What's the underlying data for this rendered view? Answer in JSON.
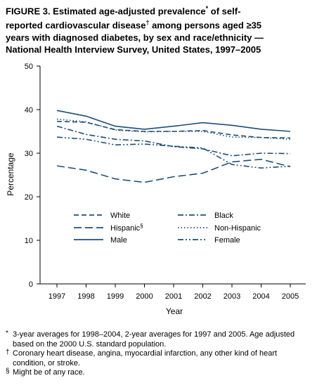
{
  "figure": {
    "title_lines": [
      "FIGURE 3. Estimated age-adjusted prevalence",
      " of self-",
      "reported cardiovascular disease",
      " among persons aged ",
      "≥35",
      "years with diagnosed diabetes, by sex and race/ethnicity —",
      "National Health Interview Survey, United States, 1997–2005"
    ],
    "title_marks": {
      "star": "*",
      "dagger": "†"
    }
  },
  "chart_data": {
    "type": "line",
    "title": "",
    "xlabel": "Year",
    "ylabel": "Percentage",
    "x": [
      "1997",
      "1998",
      "1999",
      "2000",
      "2001",
      "2002",
      "2003",
      "2004",
      "2005"
    ],
    "ylim": [
      0,
      50
    ],
    "yticks": [
      "0",
      "10",
      "20",
      "30",
      "40",
      "50"
    ],
    "grid": false,
    "legend_position": "lower-center",
    "series": [
      {
        "name": "White",
        "style": "dashed",
        "values": [
          37.3,
          37.1,
          35.4,
          35.0,
          35.0,
          35.2,
          34.2,
          33.6,
          33.5
        ]
      },
      {
        "name": "Black",
        "style": "dash-dot",
        "values": [
          36.2,
          34.3,
          33.2,
          32.8,
          31.5,
          31.0,
          29.4,
          30.0,
          29.9
        ]
      },
      {
        "name": "Hispanic§",
        "style": "long-dashed",
        "values": [
          27.1,
          26.1,
          24.1,
          23.3,
          24.6,
          25.4,
          28.0,
          28.6,
          26.9
        ]
      },
      {
        "name": "Non-Hispanic",
        "style": "dotted",
        "values": [
          37.8,
          37.2,
          35.3,
          34.9,
          35.0,
          35.0,
          33.7,
          33.6,
          33.2
        ]
      },
      {
        "name": "Male",
        "style": "solid",
        "values": [
          39.8,
          38.5,
          36.2,
          35.5,
          36.2,
          37.0,
          36.4,
          35.5,
          35.0
        ]
      },
      {
        "name": "Female",
        "style": "dash-dot-dot",
        "values": [
          33.7,
          33.2,
          31.9,
          32.1,
          31.6,
          31.2,
          27.4,
          26.6,
          27.0
        ]
      }
    ],
    "legend_labels": {
      "white": "White",
      "black": "Black",
      "hispanic": "Hispanic",
      "hispanic_mark": "§",
      "nonhispanic": "Non-Hispanic",
      "male": "Male",
      "female": "Female"
    },
    "colors": {
      "line": "#1f4e79",
      "axis": "#000000"
    }
  },
  "footnotes": [
    {
      "mark": "*",
      "text": " 3-year averages for 1998–2004, 2-year averages for 1997 and 2005. Age adjusted based on the 2000 U.S. standard population."
    },
    {
      "mark": "†",
      "text": "Coronary heart disease, angina, myocardial infarction, any other kind of heart condition, or stroke."
    },
    {
      "mark": "§",
      "text": "Might be of any race."
    }
  ]
}
